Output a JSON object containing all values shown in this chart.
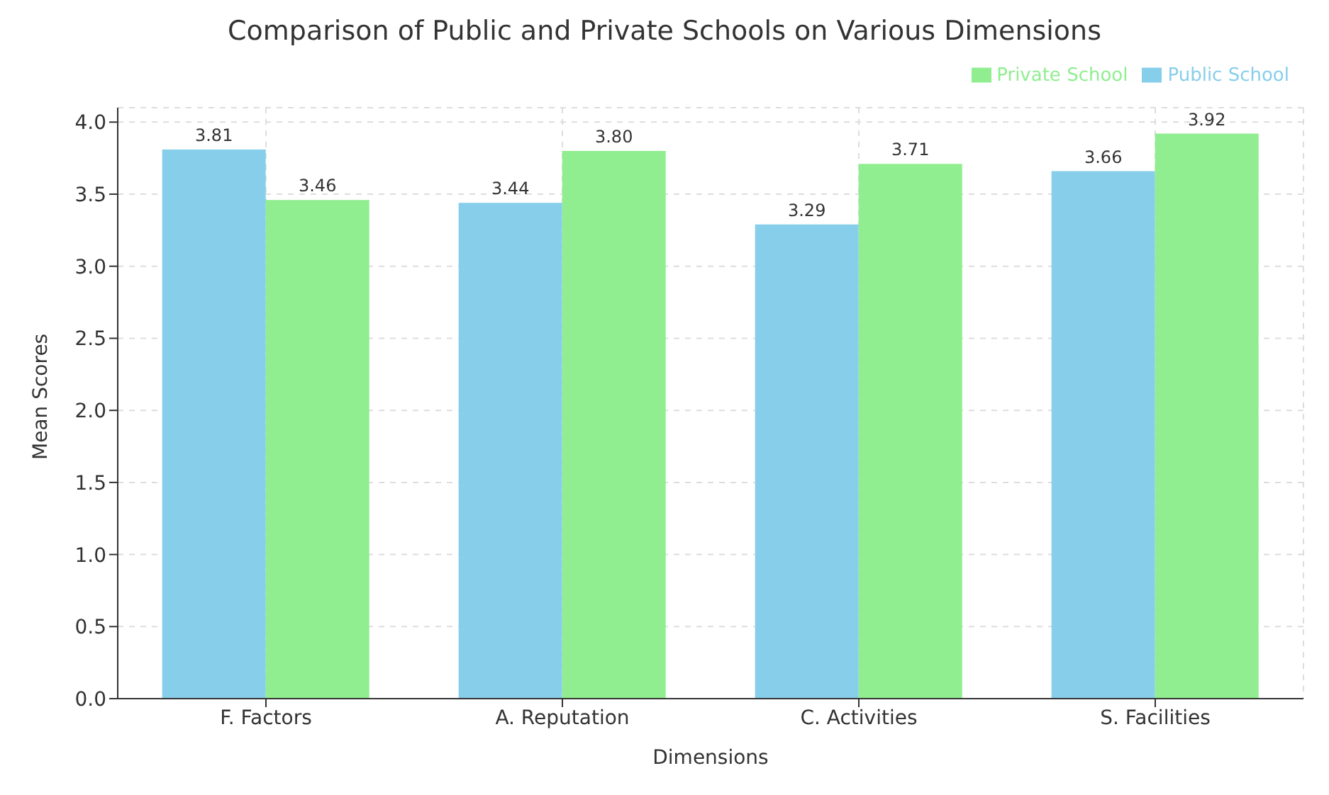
{
  "chart_data": {
    "type": "bar",
    "title": "Comparison of Public and Private Schools on Various Dimensions",
    "xlabel": "Dimensions",
    "ylabel": "Mean Scores",
    "categories": [
      "F. Factors",
      "A. Reputation",
      "C. Activities",
      "S. Facilities"
    ],
    "series": [
      {
        "name": "Public School",
        "color": "#87ceeb",
        "values": [
          3.81,
          3.44,
          3.29,
          3.66
        ],
        "value_labels": [
          "3.81",
          "3.44",
          "3.29",
          "3.66"
        ]
      },
      {
        "name": "Private School",
        "color": "#90ee90",
        "values": [
          3.46,
          3.8,
          3.71,
          3.92
        ],
        "value_labels": [
          "3.46",
          "3.80",
          "3.71",
          "3.92"
        ]
      }
    ],
    "ylim": [
      0,
      4.1
    ],
    "yticks": [
      {
        "value": 0,
        "label": "0.0"
      },
      {
        "value": 0.5,
        "label": "0.5"
      },
      {
        "value": 1,
        "label": "1.0"
      },
      {
        "value": 1.5,
        "label": "1.5"
      },
      {
        "value": 2,
        "label": "2.0"
      },
      {
        "value": 2.5,
        "label": "2.5"
      },
      {
        "value": 3,
        "label": "3.0"
      },
      {
        "value": 3.5,
        "label": "3.5"
      },
      {
        "value": 4,
        "label": "4.0"
      }
    ],
    "grid": true,
    "legend": "top right"
  }
}
